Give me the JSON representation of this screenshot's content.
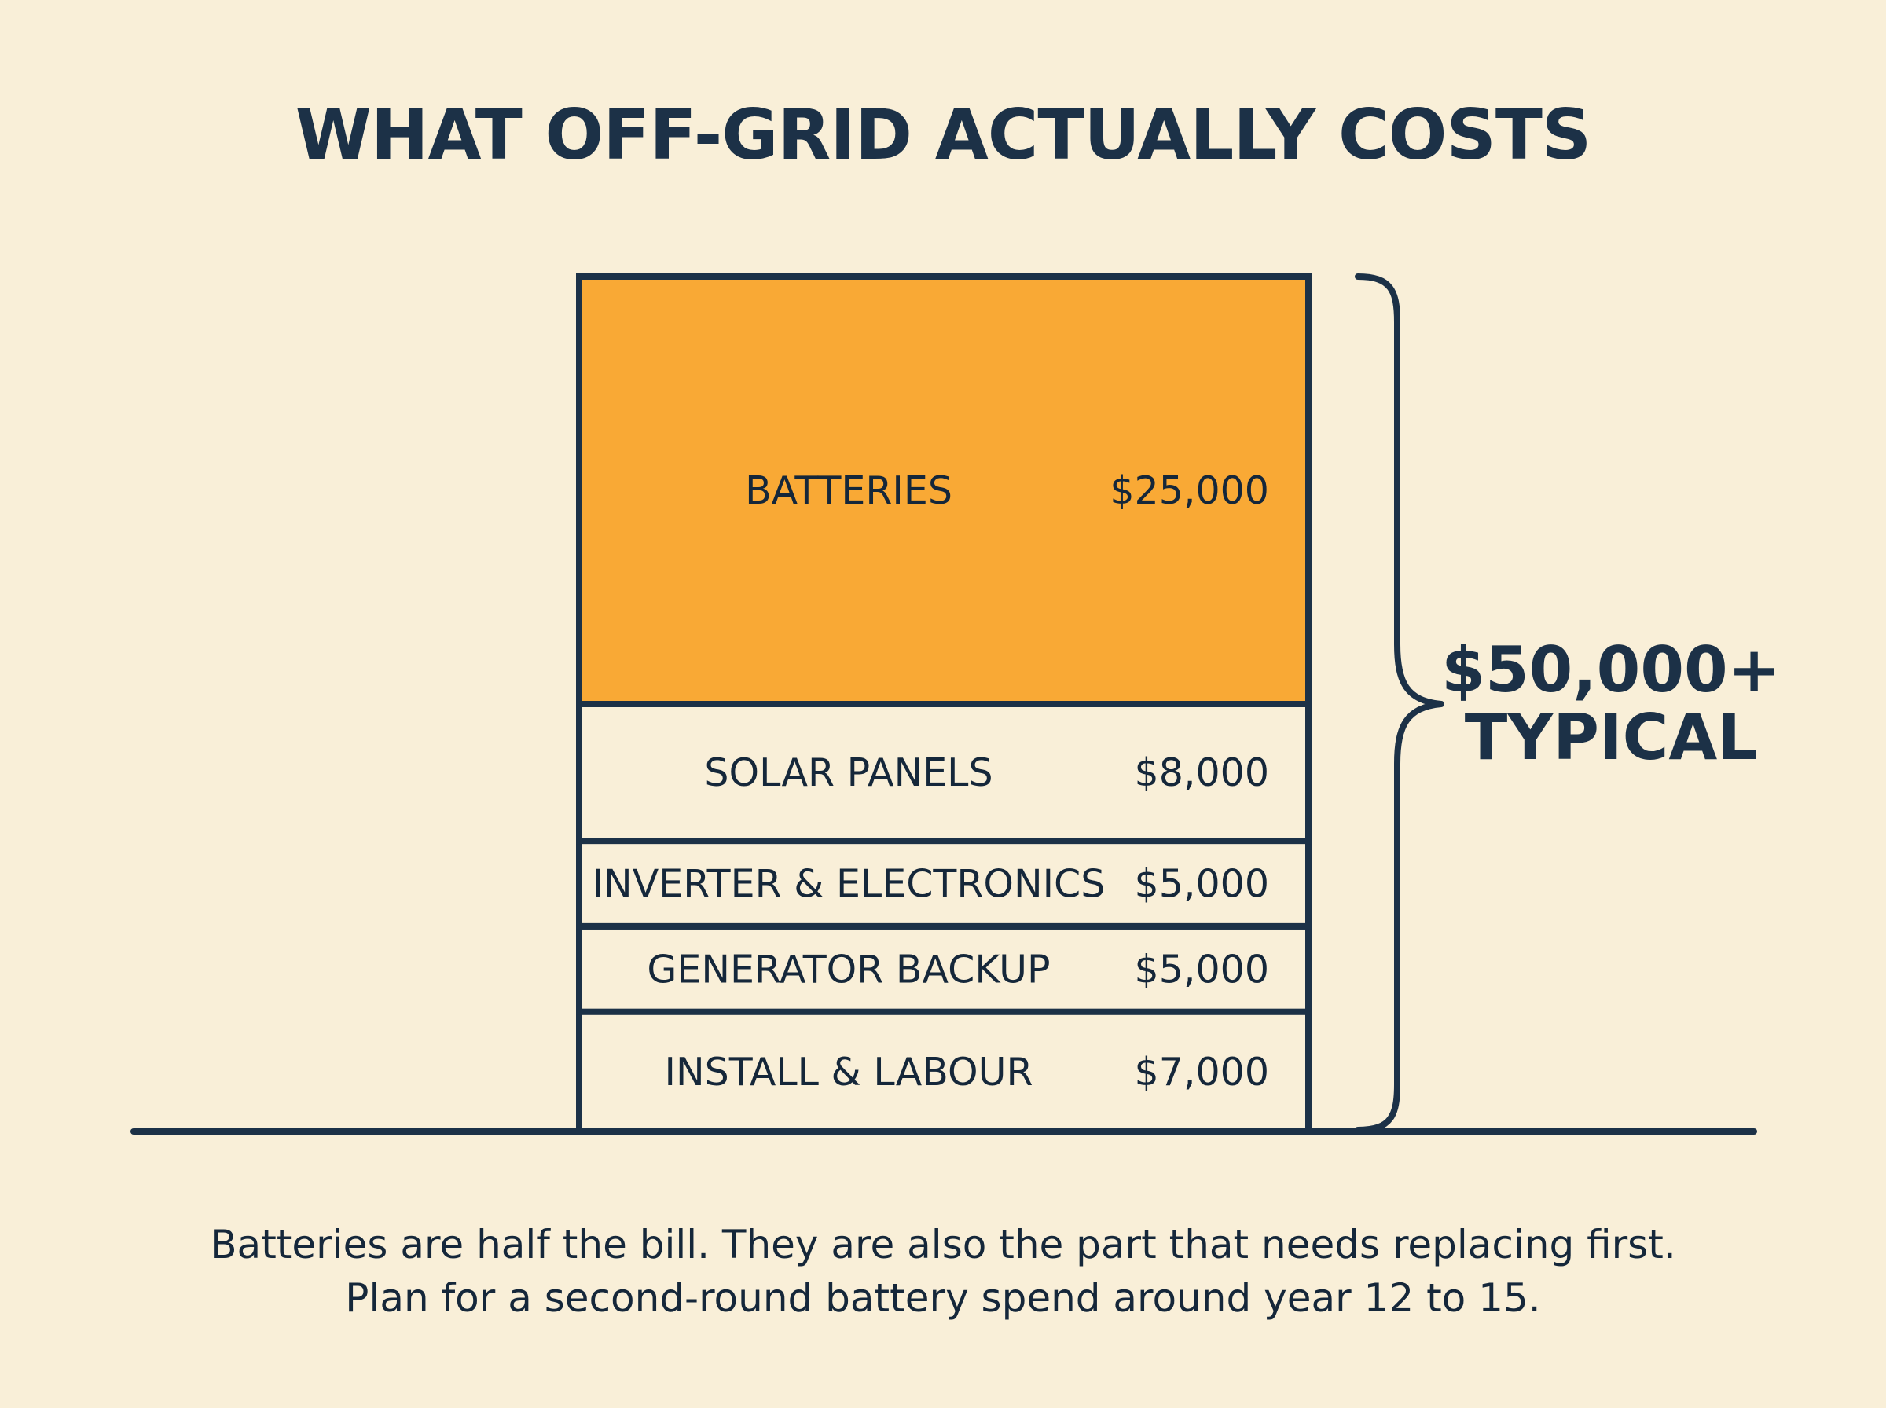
{
  "title": "WHAT OFF-GRID ACTUALLY COSTS",
  "total": {
    "line1": "$50,000+",
    "line2": "TYPICAL"
  },
  "caption": {
    "line1": "Batteries are half the bill. They are also the part that needs replacing first.",
    "line2": "Plan for a second-round battery spend around year 12 to 15."
  },
  "colors": {
    "background": "#f9efd8",
    "highlight": "#f9a935",
    "outline": "#1c3147",
    "text": "#15273a"
  },
  "chart_data": {
    "type": "bar",
    "orientation": "stacked-vertical",
    "title": "WHAT OFF-GRID ACTUALLY COSTS",
    "unit": "USD",
    "total_label": "$50,000+ TYPICAL",
    "segments": [
      {
        "label": "INSTALL & LABOUR",
        "value": 7000,
        "value_label": "$7,000",
        "highlight": false
      },
      {
        "label": "GENERATOR BACKUP",
        "value": 5000,
        "value_label": "$5,000",
        "highlight": false
      },
      {
        "label": "INVERTER & ELECTRONICS",
        "value": 5000,
        "value_label": "$5,000",
        "highlight": false
      },
      {
        "label": "SOLAR PANELS",
        "value": 8000,
        "value_label": "$8,000",
        "highlight": false
      },
      {
        "label": "BATTERIES",
        "value": 25000,
        "value_label": "$25,000",
        "highlight": true
      }
    ]
  }
}
